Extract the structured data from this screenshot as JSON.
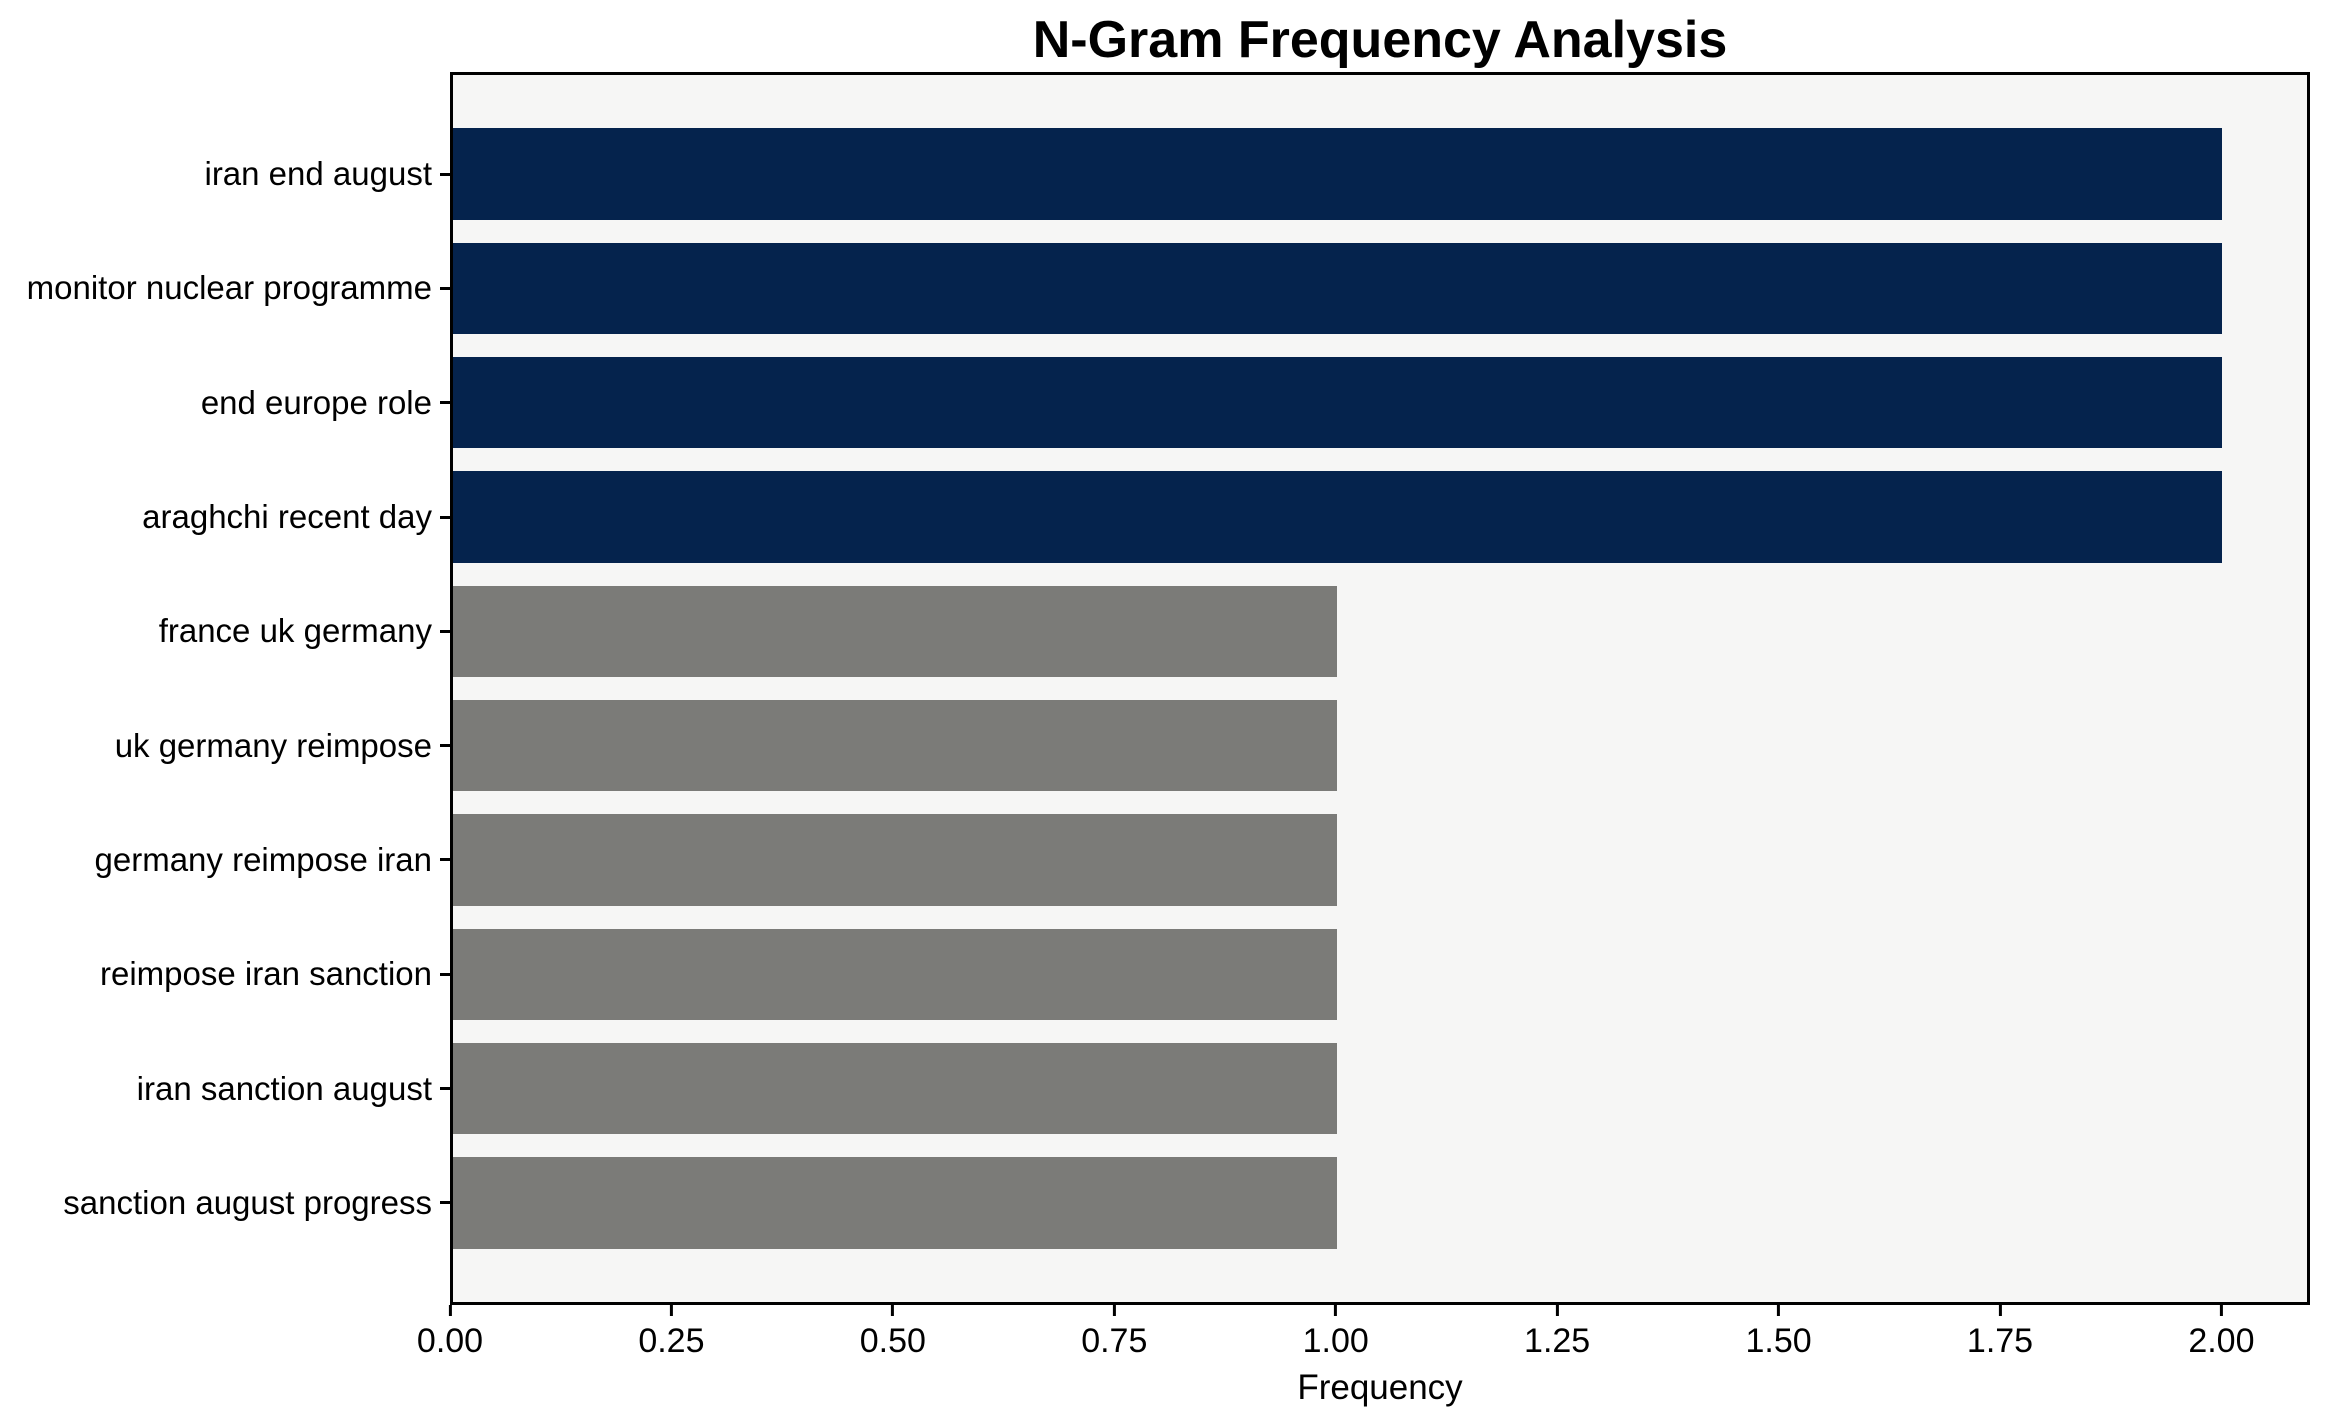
{
  "chart_data": {
    "type": "bar",
    "orientation": "horizontal",
    "title": "N-Gram Frequency Analysis",
    "xlabel": "Frequency",
    "ylabel": "",
    "categories": [
      "iran end august",
      "monitor nuclear programme",
      "end europe role",
      "araghchi recent day",
      "france uk germany",
      "uk germany reimpose",
      "germany reimpose iran",
      "reimpose iran sanction",
      "iran sanction august",
      "sanction august progress"
    ],
    "values": [
      2,
      2,
      2,
      2,
      1,
      1,
      1,
      1,
      1,
      1
    ],
    "bar_colors": [
      "#05234d",
      "#05234d",
      "#05234d",
      "#05234d",
      "#7b7b78",
      "#7b7b78",
      "#7b7b78",
      "#7b7b78",
      "#7b7b78",
      "#7b7b78"
    ],
    "xlim": [
      0,
      2.1
    ],
    "xticks": [
      0,
      0.25,
      0.5,
      0.75,
      1.0,
      1.25,
      1.5,
      1.75,
      2.0
    ],
    "xtick_labels": [
      "0.00",
      "0.25",
      "0.50",
      "0.75",
      "1.00",
      "1.25",
      "1.50",
      "1.75",
      "2.00"
    ],
    "grid": false,
    "legend": false,
    "colors": {
      "highlight_bar": "#05234d",
      "regular_bar": "#7b7b78",
      "plot_background": "#f6f6f5",
      "figure_background": "#ffffff",
      "text": "#000000"
    }
  }
}
